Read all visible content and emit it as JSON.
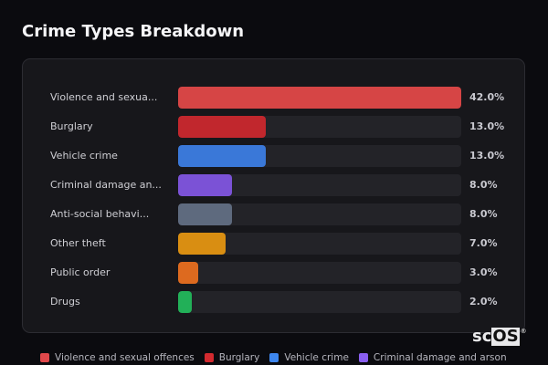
{
  "title": "Crime Types Breakdown",
  "chart_data": {
    "type": "bar",
    "orientation": "horizontal",
    "title": "Crime Types Breakdown",
    "xlabel": "",
    "ylabel": "",
    "xlim": [
      0,
      42
    ],
    "grid": false,
    "legend_position": "bottom",
    "categories": [
      "Violence and sexual offences",
      "Burglary",
      "Vehicle crime",
      "Criminal damage and arson",
      "Anti-social behaviour",
      "Other theft",
      "Public order",
      "Drugs"
    ],
    "display_labels": [
      "Violence and sexua...",
      "Burglary",
      "Vehicle crime",
      "Criminal damage an...",
      "Anti-social behavi...",
      "Other theft",
      "Public order",
      "Drugs"
    ],
    "values": [
      42.0,
      13.0,
      13.0,
      8.0,
      8.0,
      7.0,
      3.0,
      2.0
    ],
    "value_labels": [
      "42.0%",
      "13.0%",
      "13.0%",
      "8.0%",
      "8.0%",
      "7.0%",
      "3.0%",
      "2.0%"
    ],
    "colors": [
      "#d64545",
      "#c1272d",
      "#3a78d8",
      "#7b52d6",
      "#5e6a7e",
      "#d98e12",
      "#dd6a1f",
      "#22b058"
    ]
  },
  "legend": [
    {
      "label": "Violence and sexual offences",
      "color": "#e0484b"
    },
    {
      "label": "Burglary",
      "color": "#d32a2f"
    },
    {
      "label": "Vehicle crime",
      "color": "#3d86ee"
    },
    {
      "label": "Criminal damage and arson",
      "color": "#8a5ff0"
    }
  ],
  "logo": {
    "sc": "sc",
    "os": "OS",
    "reg": "®"
  }
}
